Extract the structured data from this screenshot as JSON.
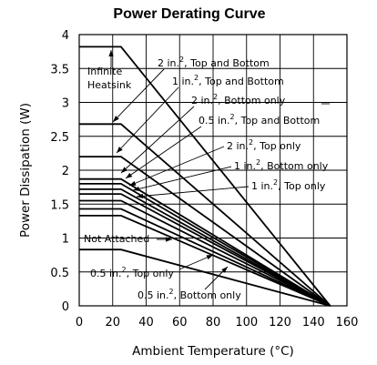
{
  "chart_data": {
    "type": "line",
    "title": "Power Derating Curve",
    "xlabel": "Ambient Temperature (°C)",
    "ylabel": "Power Dissipation (W)",
    "xlim": [
      0,
      160
    ],
    "ylim": [
      0,
      4
    ],
    "xticks": [
      0,
      20,
      40,
      60,
      80,
      100,
      120,
      140,
      160
    ],
    "yticks": [
      0,
      0.5,
      1,
      1.5,
      2,
      2.5,
      3,
      3.5,
      4
    ],
    "grid": true,
    "series": [
      {
        "name": "Infinite Heatsink",
        "points": [
          [
            0,
            3.82
          ],
          [
            25,
            3.82
          ],
          [
            150,
            0
          ]
        ]
      },
      {
        "name": "2 in.2, Top and Bottom",
        "points": [
          [
            0,
            2.68
          ],
          [
            25,
            2.68
          ],
          [
            150,
            0
          ]
        ]
      },
      {
        "name": "1 in.2, Top and Bottom",
        "points": [
          [
            0,
            2.2
          ],
          [
            25,
            2.2
          ],
          [
            150,
            0
          ]
        ]
      },
      {
        "name": "2 in.2, Bottom only",
        "points": [
          [
            0,
            1.87
          ],
          [
            25,
            1.87
          ],
          [
            150,
            0
          ]
        ]
      },
      {
        "name": "0.5 in.2, Top and Bottom",
        "points": [
          [
            0,
            1.8
          ],
          [
            25,
            1.8
          ],
          [
            150,
            0
          ]
        ]
      },
      {
        "name": "2 in.2, Top only",
        "points": [
          [
            0,
            1.72
          ],
          [
            25,
            1.72
          ],
          [
            150,
            0
          ]
        ]
      },
      {
        "name": "1 in.2, Bottom only",
        "points": [
          [
            0,
            1.65
          ],
          [
            25,
            1.65
          ],
          [
            150,
            0
          ]
        ]
      },
      {
        "name": "1 in.2, Top only",
        "points": [
          [
            0,
            1.55
          ],
          [
            25,
            1.55
          ],
          [
            150,
            0
          ]
        ]
      },
      {
        "name": "0.5 in.2, Top only",
        "points": [
          [
            0,
            1.43
          ],
          [
            25,
            1.43
          ],
          [
            150,
            0
          ]
        ]
      },
      {
        "name": "0.5 in.2, Bottom only",
        "points": [
          [
            0,
            1.33
          ],
          [
            25,
            1.33
          ],
          [
            150,
            0
          ]
        ]
      },
      {
        "name": "Not Attached",
        "points": [
          [
            0,
            0.83
          ],
          [
            25,
            0.83
          ],
          [
            150,
            0
          ]
        ]
      }
    ],
    "annotations": [
      {
        "text": "Infinite",
        "series": "Infinite Heatsink"
      },
      {
        "text": "Heatsink",
        "series": "Infinite Heatsink"
      },
      {
        "text": "2 in.",
        "sup": "2",
        "suffix": ", Top and Bottom",
        "series": "2 in.2, Top and Bottom"
      },
      {
        "text": "1 in.",
        "sup": "2",
        "suffix": ", Top and Bottom",
        "series": "1 in.2, Top and Bottom"
      },
      {
        "text": "2 in.",
        "sup": "2",
        "suffix": ", Bottom only",
        "series": "2 in.2, Bottom only"
      },
      {
        "text": "0.5 in.",
        "sup": "2",
        "suffix": ", Top and Bottom",
        "series": "0.5 in.2, Top and Bottom"
      },
      {
        "text": "2 in.",
        "sup": "2",
        "suffix": ", Top only",
        "series": "2 in.2, Top only"
      },
      {
        "text": "1 in.",
        "sup": "2",
        "suffix": ", Bottom only",
        "series": "1 in.2, Bottom only"
      },
      {
        "text": "1 in.",
        "sup": "2",
        "suffix": ", Top only",
        "series": "1 in.2, Top only"
      },
      {
        "text": "Not Attached",
        "series": "Not Attached"
      },
      {
        "text": "0.5 in.",
        "sup": "2",
        "suffix": ", Top only",
        "series": "0.5 in.2, Top only"
      },
      {
        "text": "0.5 in.",
        "sup": "2",
        "suffix": ", Bottom only",
        "series": "0.5 in.2, Bottom only"
      }
    ],
    "colors": {
      "line": "#000000",
      "grid": "#000000",
      "background": "#ffffff"
    }
  }
}
